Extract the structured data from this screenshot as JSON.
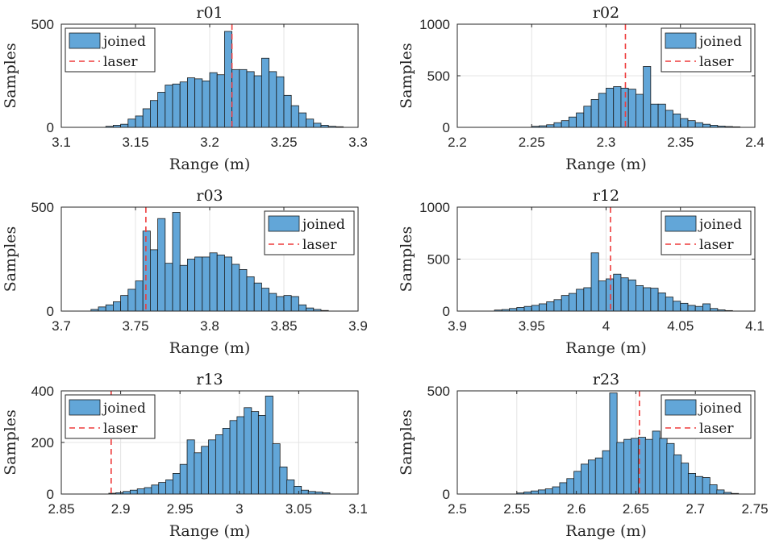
{
  "chart_data": [
    {
      "type": "bar",
      "title": "r01",
      "xlabel": "Range (m)",
      "ylabel": "Samples",
      "xlim": [
        3.1,
        3.3
      ],
      "ylim": [
        0,
        500
      ],
      "xticks": [
        "3.1",
        "3.15",
        "3.2",
        "3.25",
        "3.3"
      ],
      "yticks": [
        "0",
        "500"
      ],
      "bin_width": 0.005,
      "bins": [
        [
          3.13,
          5
        ],
        [
          3.135,
          10
        ],
        [
          3.14,
          15
        ],
        [
          3.145,
          40
        ],
        [
          3.15,
          55
        ],
        [
          3.155,
          90
        ],
        [
          3.16,
          130
        ],
        [
          3.165,
          170
        ],
        [
          3.17,
          205
        ],
        [
          3.175,
          210
        ],
        [
          3.18,
          220
        ],
        [
          3.185,
          240
        ],
        [
          3.19,
          235
        ],
        [
          3.195,
          225
        ],
        [
          3.2,
          265
        ],
        [
          3.205,
          255
        ],
        [
          3.21,
          465
        ],
        [
          3.215,
          280
        ],
        [
          3.22,
          280
        ],
        [
          3.225,
          270
        ],
        [
          3.23,
          250
        ],
        [
          3.235,
          335
        ],
        [
          3.24,
          270
        ],
        [
          3.245,
          245
        ],
        [
          3.25,
          155
        ],
        [
          3.255,
          105
        ],
        [
          3.26,
          70
        ],
        [
          3.265,
          40
        ],
        [
          3.27,
          20
        ],
        [
          3.275,
          10
        ],
        [
          3.28,
          5
        ],
        [
          3.285,
          3
        ]
      ],
      "laser": 3.215,
      "legend": [
        "joined",
        "laser"
      ],
      "legend_position": "top-left",
      "grid": true
    },
    {
      "type": "bar",
      "title": "r02",
      "xlabel": "Range (m)",
      "ylabel": "Samples",
      "xlim": [
        2.2,
        2.4
      ],
      "ylim": [
        0,
        1000
      ],
      "xticks": [
        "2.2",
        "2.25",
        "2.3",
        "2.35",
        "2.4"
      ],
      "yticks": [
        "0",
        "500",
        "1000"
      ],
      "bin_width": 0.005,
      "bins": [
        [
          2.25,
          10
        ],
        [
          2.255,
          15
        ],
        [
          2.26,
          25
        ],
        [
          2.265,
          45
        ],
        [
          2.27,
          65
        ],
        [
          2.275,
          100
        ],
        [
          2.28,
          140
        ],
        [
          2.285,
          205
        ],
        [
          2.29,
          270
        ],
        [
          2.295,
          330
        ],
        [
          2.3,
          380
        ],
        [
          2.305,
          395
        ],
        [
          2.31,
          380
        ],
        [
          2.315,
          370
        ],
        [
          2.32,
          320
        ],
        [
          2.325,
          590
        ],
        [
          2.33,
          225
        ],
        [
          2.335,
          225
        ],
        [
          2.34,
          165
        ],
        [
          2.345,
          130
        ],
        [
          2.35,
          85
        ],
        [
          2.355,
          65
        ],
        [
          2.36,
          45
        ],
        [
          2.365,
          30
        ],
        [
          2.37,
          20
        ],
        [
          2.375,
          12
        ],
        [
          2.38,
          8
        ],
        [
          2.385,
          5
        ]
      ],
      "laser": 2.313,
      "legend": [
        "joined",
        "laser"
      ],
      "legend_position": "top-right",
      "grid": true
    },
    {
      "type": "bar",
      "title": "r03",
      "xlabel": "Range (m)",
      "ylabel": "Samples",
      "xlim": [
        3.7,
        3.9
      ],
      "ylim": [
        0,
        500
      ],
      "xticks": [
        "3.7",
        "3.75",
        "3.8",
        "3.85",
        "3.9"
      ],
      "yticks": [
        "0",
        "500"
      ],
      "bin_width": 0.005,
      "bins": [
        [
          3.72,
          8
        ],
        [
          3.725,
          20
        ],
        [
          3.73,
          30
        ],
        [
          3.735,
          45
        ],
        [
          3.74,
          75
        ],
        [
          3.745,
          105
        ],
        [
          3.75,
          145
        ],
        [
          3.755,
          385
        ],
        [
          3.76,
          295
        ],
        [
          3.765,
          445
        ],
        [
          3.77,
          230
        ],
        [
          3.775,
          475
        ],
        [
          3.78,
          220
        ],
        [
          3.785,
          250
        ],
        [
          3.79,
          260
        ],
        [
          3.795,
          260
        ],
        [
          3.8,
          280
        ],
        [
          3.805,
          270
        ],
        [
          3.81,
          260
        ],
        [
          3.815,
          225
        ],
        [
          3.82,
          200
        ],
        [
          3.825,
          165
        ],
        [
          3.83,
          135
        ],
        [
          3.835,
          110
        ],
        [
          3.84,
          85
        ],
        [
          3.845,
          70
        ],
        [
          3.85,
          75
        ],
        [
          3.855,
          70
        ],
        [
          3.86,
          30
        ],
        [
          3.865,
          15
        ],
        [
          3.87,
          8
        ],
        [
          3.875,
          3
        ]
      ],
      "laser": 3.757,
      "legend": [
        "joined",
        "laser"
      ],
      "legend_position": "top-right",
      "grid": true
    },
    {
      "type": "bar",
      "title": "r12",
      "xlabel": "Range (m)",
      "ylabel": "Samples",
      "xlim": [
        3.9,
        4.1
      ],
      "ylim": [
        0,
        1000
      ],
      "xticks": [
        "3.9",
        "3.95",
        "4",
        "4.05",
        "4.1"
      ],
      "yticks": [
        "0",
        "500",
        "1000"
      ],
      "bin_width": 0.005,
      "bins": [
        [
          3.925,
          10
        ],
        [
          3.93,
          15
        ],
        [
          3.935,
          25
        ],
        [
          3.94,
          35
        ],
        [
          3.945,
          45
        ],
        [
          3.95,
          55
        ],
        [
          3.955,
          70
        ],
        [
          3.96,
          90
        ],
        [
          3.965,
          110
        ],
        [
          3.97,
          150
        ],
        [
          3.975,
          170
        ],
        [
          3.98,
          210
        ],
        [
          3.985,
          225
        ],
        [
          3.99,
          560
        ],
        [
          3.995,
          290
        ],
        [
          4.0,
          310
        ],
        [
          4.005,
          355
        ],
        [
          4.01,
          320
        ],
        [
          4.015,
          300
        ],
        [
          4.02,
          245
        ],
        [
          4.025,
          225
        ],
        [
          4.03,
          220
        ],
        [
          4.035,
          175
        ],
        [
          4.04,
          135
        ],
        [
          4.045,
          95
        ],
        [
          4.05,
          75
        ],
        [
          4.055,
          55
        ],
        [
          4.06,
          45
        ],
        [
          4.065,
          70
        ],
        [
          4.07,
          25
        ],
        [
          4.075,
          12
        ],
        [
          4.08,
          5
        ]
      ],
      "laser": 4.003,
      "legend": [
        "joined",
        "laser"
      ],
      "legend_position": "top-right",
      "grid": true
    },
    {
      "type": "bar",
      "title": "r13",
      "xlabel": "Range (m)",
      "ylabel": "Samples",
      "xlim": [
        2.85,
        3.1
      ],
      "ylim": [
        0,
        400
      ],
      "xticks": [
        "2.85",
        "2.9",
        "2.95",
        "3",
        "3.05",
        "3.1"
      ],
      "yticks": [
        "0",
        "200",
        "400"
      ],
      "bin_width": 0.00625,
      "bins": [
        [
          2.89,
          3
        ],
        [
          2.896,
          5
        ],
        [
          2.902,
          10
        ],
        [
          2.908,
          15
        ],
        [
          2.914,
          20
        ],
        [
          2.92,
          25
        ],
        [
          2.926,
          35
        ],
        [
          2.932,
          45
        ],
        [
          2.938,
          55
        ],
        [
          2.944,
          80
        ],
        [
          2.95,
          115
        ],
        [
          2.956,
          210
        ],
        [
          2.962,
          160
        ],
        [
          2.968,
          185
        ],
        [
          2.974,
          210
        ],
        [
          2.98,
          230
        ],
        [
          2.986,
          255
        ],
        [
          2.992,
          285
        ],
        [
          2.998,
          300
        ],
        [
          3.004,
          335
        ],
        [
          3.01,
          320
        ],
        [
          3.016,
          305
        ],
        [
          3.022,
          380
        ],
        [
          3.028,
          195
        ],
        [
          3.034,
          105
        ],
        [
          3.04,
          55
        ],
        [
          3.046,
          30
        ],
        [
          3.052,
          15
        ],
        [
          3.058,
          10
        ],
        [
          3.064,
          8
        ],
        [
          3.07,
          5
        ]
      ],
      "laser": 2.892,
      "legend": [
        "joined",
        "laser"
      ],
      "legend_position": "top-left",
      "grid": true
    },
    {
      "type": "bar",
      "title": "r23",
      "xlabel": "Range (m)",
      "ylabel": "Samples",
      "xlim": [
        2.5,
        2.75
      ],
      "ylim": [
        0,
        500
      ],
      "xticks": [
        "2.5",
        "2.55",
        "2.6",
        "2.65",
        "2.7",
        "2.75"
      ],
      "yticks": [
        "0",
        "500"
      ],
      "bin_width": 0.00625,
      "bins": [
        [
          2.55,
          5
        ],
        [
          2.556,
          10
        ],
        [
          2.562,
          15
        ],
        [
          2.568,
          20
        ],
        [
          2.574,
          25
        ],
        [
          2.58,
          35
        ],
        [
          2.586,
          55
        ],
        [
          2.592,
          75
        ],
        [
          2.598,
          110
        ],
        [
          2.604,
          145
        ],
        [
          2.61,
          165
        ],
        [
          2.616,
          175
        ],
        [
          2.622,
          210
        ],
        [
          2.628,
          490
        ],
        [
          2.634,
          250
        ],
        [
          2.64,
          265
        ],
        [
          2.646,
          270
        ],
        [
          2.652,
          275
        ],
        [
          2.658,
          265
        ],
        [
          2.664,
          305
        ],
        [
          2.67,
          270
        ],
        [
          2.676,
          245
        ],
        [
          2.682,
          190
        ],
        [
          2.688,
          150
        ],
        [
          2.694,
          100
        ],
        [
          2.7,
          85
        ],
        [
          2.706,
          80
        ],
        [
          2.712,
          45
        ],
        [
          2.718,
          20
        ],
        [
          2.724,
          8
        ],
        [
          2.73,
          3
        ]
      ],
      "laser": 2.653,
      "legend": [
        "joined",
        "laser"
      ],
      "legend_position": "top-right",
      "grid": true
    }
  ]
}
